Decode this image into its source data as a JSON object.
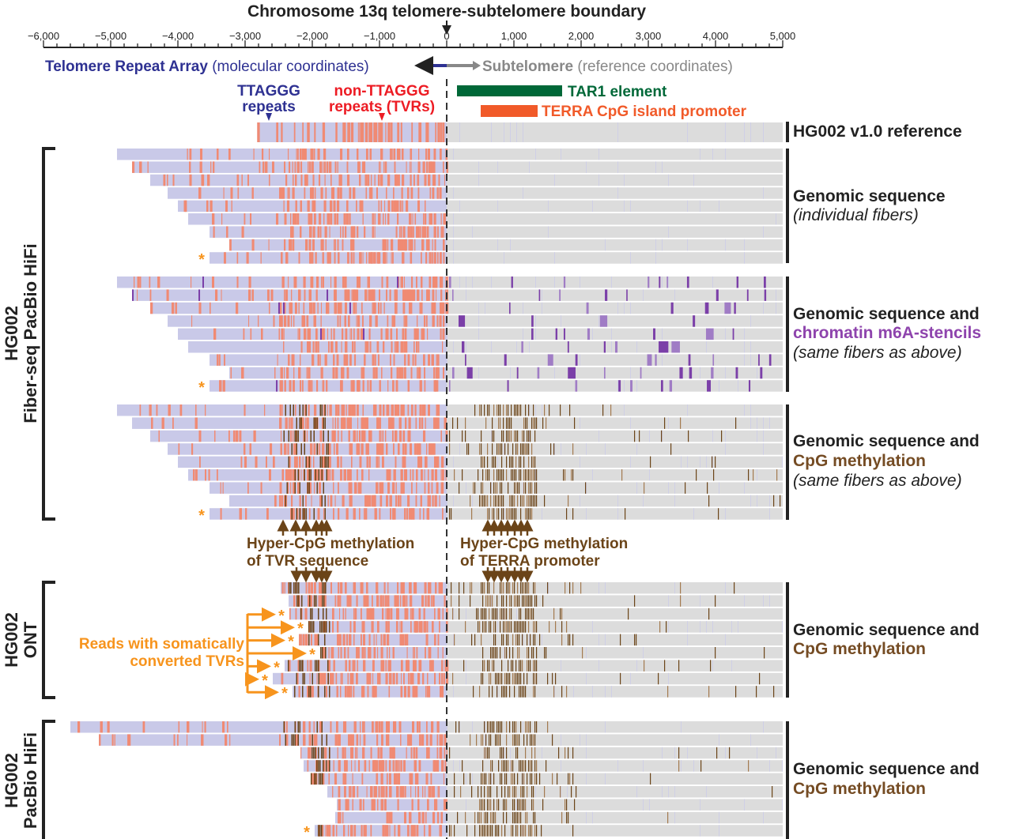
{
  "title": "Chromosome 13q telomere-subtelomere boundary",
  "axis": {
    "min": -6000,
    "max": 5000,
    "ticks": [
      "−6,000",
      "−5,000",
      "−4,000",
      "−3,000",
      "−2,000",
      "−1,000",
      "0",
      "1,000",
      "2,000",
      "3,000",
      "4,000",
      "5,000"
    ],
    "tick_values": [
      -6000,
      -5000,
      -4000,
      -3000,
      -2000,
      -1000,
      0,
      1000,
      2000,
      3000,
      4000,
      5000
    ]
  },
  "regions": {
    "telomere_bold": "Telomere Repeat Array",
    "telomere_note": "(molecular coordinates)",
    "subtelomere_bold": "Subtelomere",
    "subtelomere_note": "(reference coordinates)"
  },
  "legend": {
    "ttaggg_1": "TTAGGG",
    "ttaggg_2": "repeats",
    "tvr_1": "non-TTAGGG",
    "tvr_2": "repeats (TVRs)",
    "tar1": "TAR1 element",
    "terra": "TERRA CpG island promoter"
  },
  "colors": {
    "telomere_blue": "#2e3192",
    "tvr_red": "#ed1c24",
    "tar1_green": "#006838",
    "terra_orange": "#f15a29",
    "ttaggg_fill": "#c9c9e8",
    "tvr_fill": "#f08a73",
    "subtel_fill": "#dcdcdc",
    "m6a_purple": "#7b3fa8",
    "cpg_brown": "#6b4418",
    "somatic_orange": "#f7941d",
    "m6a_label": "#8e44ad",
    "cpg_label": "#754c24"
  },
  "reference": {
    "label": "HG002 v1.0 reference",
    "start": -2820
  },
  "groups": {
    "fiberseq_label_1": "HG002",
    "fiberseq_label_2": "Fiber-seq PacBio HiFi",
    "ont_label_1": "HG002",
    "ont_label_2": "ONT",
    "hifi_label_1": "HG002",
    "hifi_label_2": "PacBio HiFi"
  },
  "panels": [
    {
      "id": "seq",
      "label_1": "Genomic sequence",
      "label_2": "(individual fibers)",
      "mark": "none",
      "starts": [
        -4906,
        -4682,
        -4412,
        -4153,
        -4000,
        -3847,
        -3529,
        -3235,
        -3529
      ],
      "asterisk": [
        8
      ]
    },
    {
      "id": "m6a",
      "label_1": "Genomic sequence and",
      "label_2": "chromatin m6A-stencils",
      "label_3": "(same fibers as above)",
      "mark": "m6a",
      "starts": [
        -4906,
        -4682,
        -4412,
        -4153,
        -4000,
        -3847,
        -3529,
        -3235,
        -3529
      ],
      "asterisk": [
        8
      ]
    },
    {
      "id": "cpg",
      "label_1": "Genomic sequence and",
      "label_2": "CpG methylation",
      "label_3": "(same fibers as above)",
      "mark": "cpg",
      "starts": [
        -4906,
        -4682,
        -4412,
        -4153,
        -4000,
        -3847,
        -3529,
        -3235,
        -3529
      ],
      "asterisk": [
        8
      ]
    },
    {
      "id": "ont",
      "label_1": "Genomic sequence and",
      "label_2": "CpG methylation",
      "mark": "cpg",
      "starts": [
        -2470,
        -2353,
        -2341,
        -2059,
        -2200,
        -1882,
        -2412,
        -2588,
        -2294
      ],
      "asterisk": [
        2,
        3,
        4,
        5,
        6,
        7,
        8
      ]
    },
    {
      "id": "hifi",
      "label_1": "Genomic sequence and",
      "label_2": "CpG methylation",
      "mark": "cpg",
      "starts": [
        -5600,
        -5176,
        -2176,
        -2129,
        -2024,
        -1776,
        -1635,
        -1659,
        -1965
      ],
      "asterisk": [
        8
      ]
    }
  ],
  "annotations": {
    "hyper_tvr_1": "Hyper-CpG methylation",
    "hyper_tvr_2": "of TVR sequence",
    "hyper_terra_1": "Hyper-CpG methylation",
    "hyper_terra_2": "of TERRA promoter",
    "somatic_1": "Reads with somatically",
    "somatic_2": "converted TVRs",
    "asterisk": "*"
  }
}
